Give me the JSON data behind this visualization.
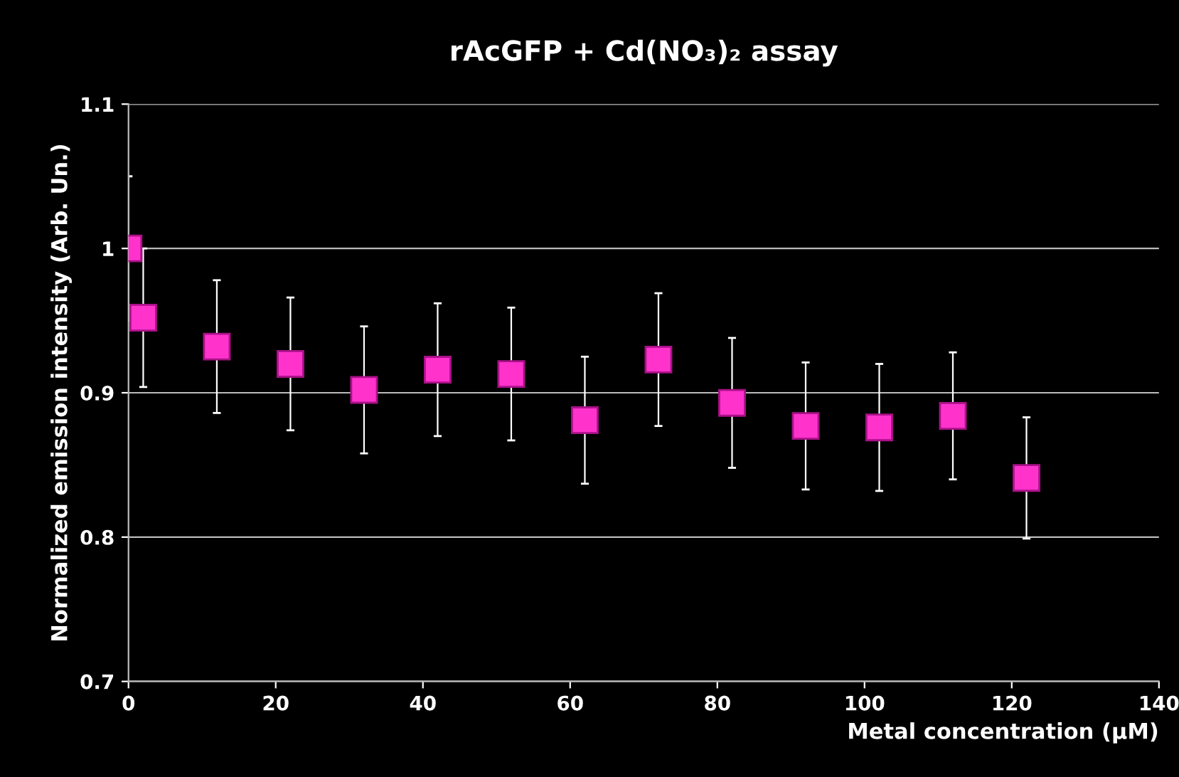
{
  "chart_data": {
    "type": "scatter",
    "title": "rAcGFP + Cd(NO₃)₂ assay",
    "xlabel": "Metal concentration (µM)",
    "ylabel": "Normalized emission intensity (Arb. Un.)",
    "x": [
      0,
      2,
      12,
      22,
      32,
      42,
      52,
      62,
      72,
      82,
      92,
      102,
      112,
      122
    ],
    "series": [
      {
        "color": "#ff33cc",
        "values": [
          1.0,
          0.952,
          0.932,
          0.92,
          0.902,
          0.916,
          0.913,
          0.881,
          0.923,
          0.893,
          0.877,
          0.876,
          0.884,
          0.841
        ],
        "errors": [
          0.05,
          0.048,
          0.046,
          0.046,
          0.044,
          0.046,
          0.046,
          0.044,
          0.046,
          0.045,
          0.044,
          0.044,
          0.044,
          0.042
        ]
      }
    ],
    "xlim": [
      0,
      140
    ],
    "xticks": [
      0,
      20,
      40,
      60,
      80,
      100,
      120,
      140
    ],
    "ylim": [
      0.7,
      1.1
    ],
    "yticks": [
      0.7,
      0.8,
      0.9,
      1,
      1.1
    ],
    "grid": "y",
    "marker": "square",
    "legend": false
  }
}
